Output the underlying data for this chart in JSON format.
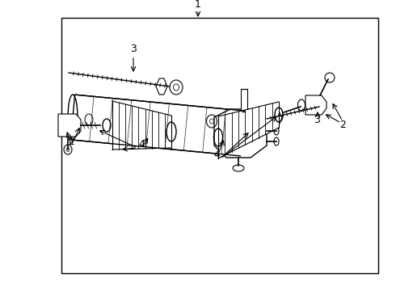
{
  "background_color": "#ffffff",
  "border_color": "#000000",
  "line_color": "#000000",
  "figure_width": 4.9,
  "figure_height": 3.6,
  "dpi": 100,
  "border": [
    0.155,
    0.06,
    0.955,
    0.94
  ]
}
